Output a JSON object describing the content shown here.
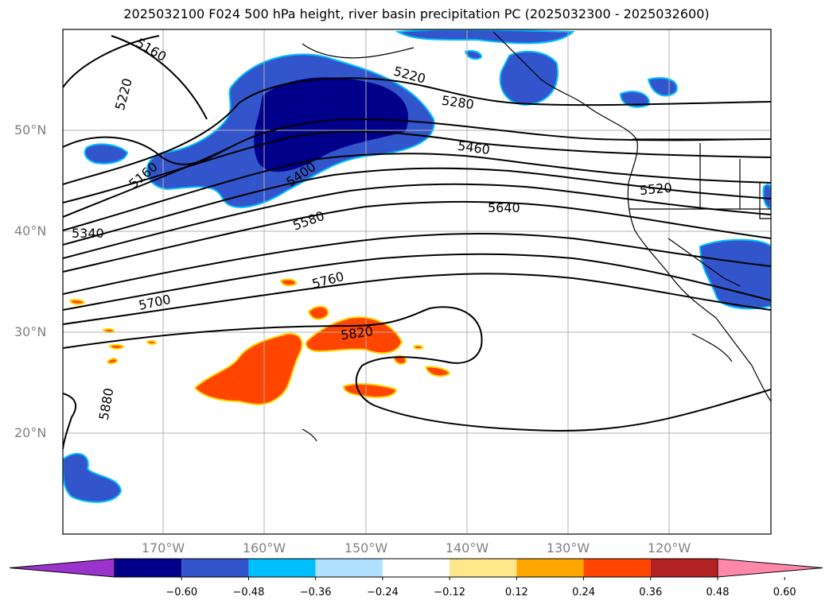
{
  "title": "2025032100 F024 500 hPa height, river basin precipitation PC (2025032300 - 2025032600)",
  "lat_labels": [
    "50°N",
    "40°N",
    "30°N",
    "20°N"
  ],
  "lon_labels": [
    "170°W",
    "160°W",
    "150°W",
    "140°W",
    "130°W",
    "120°W"
  ],
  "contour_labels": [
    "5160",
    "5220",
    "5160",
    "5220",
    "5280",
    "5400",
    "5460",
    "5520",
    "5580",
    "5640",
    "5340",
    "5760",
    "5700",
    "5820",
    "5880"
  ],
  "colorbar": {
    "ticks": [
      "−0.60",
      "−0.48",
      "−0.36",
      "−0.24",
      "−0.12",
      "0.12",
      "0.24",
      "0.36",
      "0.48",
      "0.60"
    ],
    "colors": [
      "#9933cc",
      "#00008b",
      "#3355cc",
      "#00bfff",
      "#b0e0ff",
      "#ffffff",
      "#ffe88a",
      "#ffa500",
      "#ff4500",
      "#b22222",
      "#ff88aa"
    ]
  },
  "colors": {
    "precip_neg_strong": "#00008b",
    "precip_neg_mid": "#3355cc",
    "precip_neg_light": "#00bfff",
    "precip_pos": "#ff4500",
    "gridline": "#b0b0b0"
  }
}
